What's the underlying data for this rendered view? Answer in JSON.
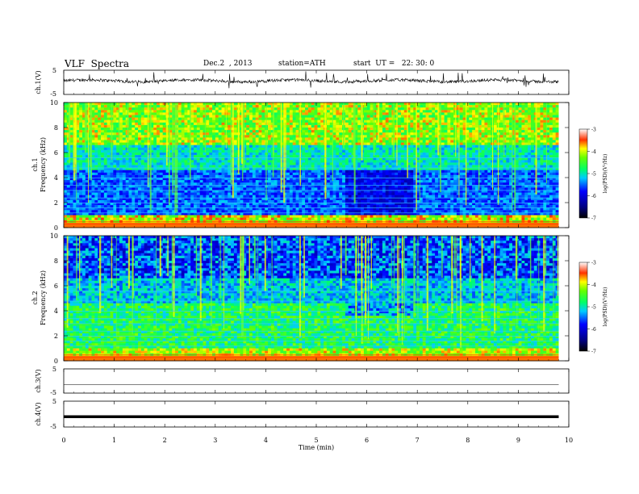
{
  "header": {
    "title": "VLF  Spectra",
    "date": "Dec.2  , 2013",
    "station": "station=ATH",
    "start": "start  UT =   22: 30: 0"
  },
  "chart_data": [
    {
      "type": "line",
      "panel": "ch1-waveform",
      "ylabel": "ch.1(V)",
      "ylim": [
        -5,
        5
      ],
      "yticks": [
        "5",
        "-5"
      ],
      "x_range_min": [
        0,
        9.8
      ],
      "description_level": "noisy waveform centred slightly above 0 V with sporadic positive spikes"
    },
    {
      "type": "heatmap",
      "panel": "ch1-spectrogram",
      "ylabel_channel": "ch.1",
      "ylabel": "Frequency  (kHz)",
      "ylim": [
        0,
        10
      ],
      "yticks": [
        "0",
        "2",
        "4",
        "6",
        "8",
        "10"
      ],
      "xlim": [
        0,
        10
      ],
      "colorbar": {
        "label": "log(PSD)(V²/Hz)",
        "range": [
          -7,
          -3
        ],
        "ticks": [
          "-3",
          "-4",
          "-5",
          "-6",
          "-7"
        ]
      }
    },
    {
      "type": "heatmap",
      "panel": "ch2-spectrogram",
      "ylabel_channel": "ch.2",
      "ylabel": "Frequency  (kHz)",
      "ylim": [
        0,
        10
      ],
      "yticks": [
        "0",
        "2",
        "4",
        "6",
        "8",
        "10"
      ],
      "xlim": [
        0,
        10
      ],
      "colorbar": {
        "label": "log(PSD)(V²/Hz)",
        "range": [
          -7,
          -3
        ],
        "ticks": [
          "-3",
          "-4",
          "-5",
          "-6",
          "-7"
        ]
      }
    },
    {
      "type": "line",
      "panel": "ch3-waveform",
      "ylabel": "ch.3(V)",
      "ylim": [
        -5,
        5
      ],
      "yticks": [
        "5",
        "-5"
      ],
      "level": -1.5
    },
    {
      "type": "line",
      "panel": "ch4-waveform",
      "ylabel": "ch.4(V)",
      "ylim": [
        -5,
        5
      ],
      "yticks": [
        "5",
        "-5"
      ],
      "level": -1.0
    }
  ],
  "xaxis": {
    "label": "Time  (min)",
    "ticks": [
      "0",
      "1",
      "2",
      "3",
      "4",
      "5",
      "6",
      "7",
      "8",
      "9",
      "10"
    ],
    "xlim": [
      0,
      10
    ]
  },
  "colors": {
    "low": "#000066",
    "mid": "#00ccff",
    "green": "#33ff33",
    "yellow": "#ffff00",
    "high": "#ff0000"
  }
}
